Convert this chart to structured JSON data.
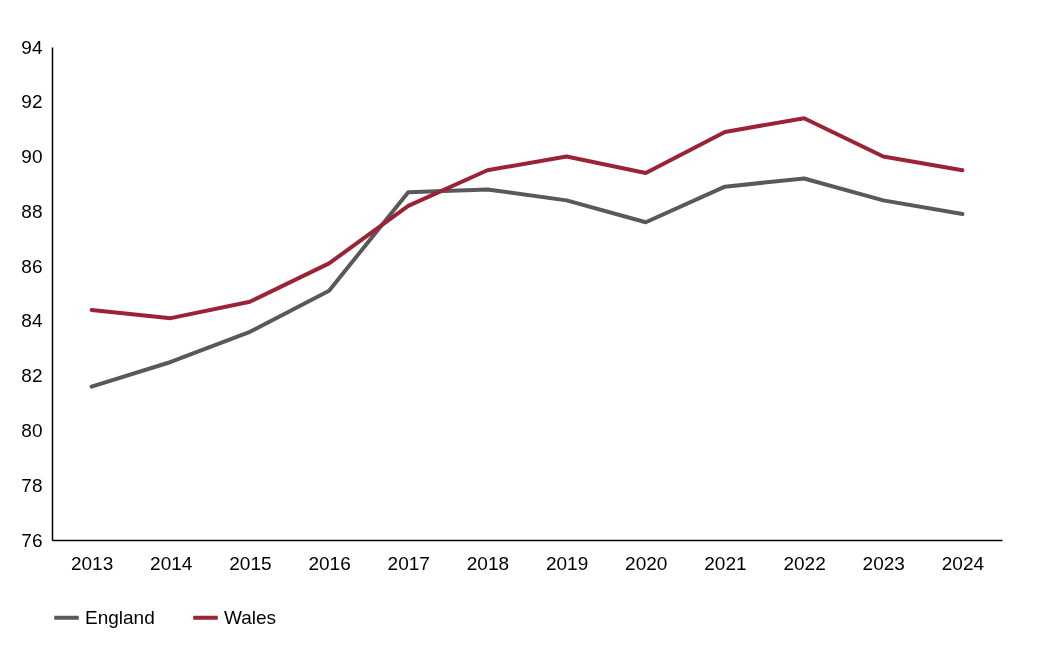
{
  "chart_data": {
    "type": "line",
    "categories": [
      "2013",
      "2014",
      "2015",
      "2016",
      "2017",
      "2018",
      "2019",
      "2020",
      "2021",
      "2022",
      "2023",
      "2024"
    ],
    "series": [
      {
        "name": "England",
        "color": "#595959",
        "values": [
          81.6,
          82.5,
          83.6,
          85.1,
          88.7,
          88.8,
          88.4,
          87.6,
          88.9,
          89.2,
          88.4,
          87.9
        ]
      },
      {
        "name": "Wales",
        "color": "#9b2335",
        "values": [
          84.4,
          84.1,
          84.7,
          86.1,
          88.2,
          89.5,
          90.0,
          89.4,
          90.9,
          91.4,
          90.0,
          89.5
        ]
      }
    ],
    "ylim": [
      76,
      94
    ],
    "yticks": [
      76,
      78,
      80,
      82,
      84,
      86,
      88,
      90,
      92,
      94
    ],
    "grid": false,
    "legend": "bottom",
    "marker": "none",
    "line_style": "solid"
  }
}
